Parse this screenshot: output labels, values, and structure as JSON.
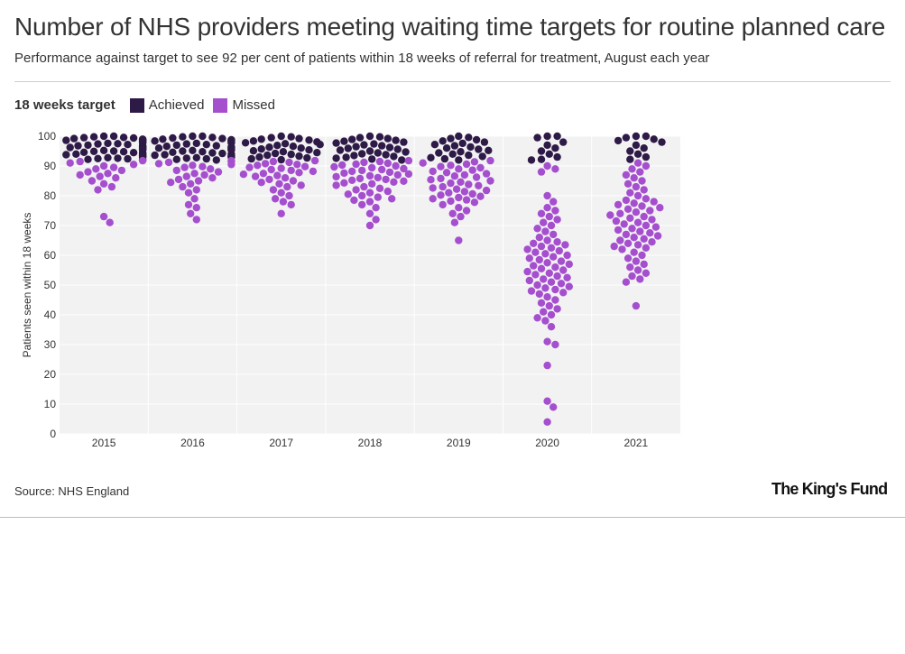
{
  "header": {
    "title": "Number of NHS providers meeting waiting time targets for routine planned care",
    "subtitle": "Performance against target to see 92 per cent of patients within 18 weeks of referral for treatment, August each year"
  },
  "legend": {
    "title": "18 weeks target",
    "items": [
      {
        "label": "Achieved",
        "color": "#2e1a47"
      },
      {
        "label": "Missed",
        "color": "#a54fcf"
      }
    ]
  },
  "footer": {
    "source": "Source: NHS England",
    "logo": "The King's Fund"
  },
  "chart_data": {
    "type": "scatter",
    "subtype": "beeswarm",
    "title": "Number of NHS providers meeting waiting time targets for routine planned care",
    "ylabel": "Patients seen within 18 weeks",
    "xlabel": "",
    "categories": [
      "2015",
      "2016",
      "2017",
      "2018",
      "2019",
      "2020",
      "2021"
    ],
    "ylim": [
      0,
      100
    ],
    "yticks": [
      0,
      10,
      20,
      30,
      40,
      50,
      60,
      70,
      80,
      90,
      100
    ],
    "target": 92,
    "series": [
      {
        "name": "Achieved",
        "color": "#2e1a47",
        "values": {
          "2015": [
            100,
            100,
            99.8,
            99.6,
            99.5,
            99.4,
            99.2,
            99,
            98.9,
            98.8,
            98.6,
            98.5,
            98.4,
            98.2,
            98,
            97.9,
            97.8,
            97.6,
            97.5,
            97.4,
            97.2,
            97,
            96.9,
            96.8,
            96.6,
            96.5,
            96.4,
            96.2,
            96,
            95.9,
            95.8,
            95.6,
            95.5,
            95.4,
            95.2,
            95,
            94.9,
            94.8,
            94.6,
            94.5,
            94.4,
            94.2,
            94,
            93.9,
            93.8,
            93.6,
            93.5,
            93.4,
            93.2,
            93,
            92.9,
            92.8,
            92.6,
            92.5,
            92.4,
            92.2,
            92.1,
            92
          ],
          "2016": [
            100,
            100,
            99.8,
            99.6,
            99.4,
            99.2,
            99,
            98.8,
            98.6,
            98.4,
            98.2,
            98,
            97.8,
            97.6,
            97.4,
            97.2,
            97,
            96.8,
            96.6,
            96.4,
            96.2,
            96,
            95.8,
            95.6,
            95.4,
            95.2,
            95,
            94.8,
            94.6,
            94.4,
            94.2,
            94,
            93.8,
            93.6,
            93.4,
            93.2,
            93,
            92.8,
            92.6,
            92.4,
            92.2,
            92
          ],
          "2017": [
            100,
            99.8,
            99.5,
            99.2,
            99,
            98.7,
            98.4,
            98.1,
            97.8,
            97.5,
            97.2,
            96.9,
            96.6,
            96.3,
            96,
            95.7,
            95.4,
            95.1,
            94.8,
            94.5,
            94.2,
            93.9,
            93.6,
            93.3,
            93,
            92.7,
            92.4,
            92.1
          ],
          "2018": [
            100,
            99.8,
            99.5,
            99.2,
            98.9,
            98.6,
            98.3,
            98,
            97.7,
            97.4,
            97.1,
            96.8,
            96.5,
            96.2,
            95.9,
            95.6,
            95.3,
            95,
            94.7,
            94.4,
            94.1,
            93.8,
            93.5,
            93.2,
            92.9,
            92.6,
            92.3,
            92
          ],
          "2019": [
            100,
            99.6,
            99.2,
            98.8,
            98.4,
            98,
            97.6,
            97.2,
            96.8,
            96.4,
            96,
            95.6,
            95.2,
            94.8,
            94.4,
            94,
            93.6,
            93.2,
            92.8,
            92.4,
            92
          ],
          "2020": [
            100,
            100,
            99.5,
            98,
            97,
            96,
            95,
            94,
            93,
            92.2,
            92
          ],
          "2021": [
            100,
            100,
            99.5,
            99,
            98.5,
            98,
            97,
            96,
            95,
            94,
            93,
            92.2
          ]
        }
      },
      {
        "name": "Missed",
        "color": "#a54fcf",
        "values": {
          "2015": [
            91.8,
            91.5,
            91,
            90.5,
            90,
            89.5,
            89,
            88.5,
            88,
            87.5,
            87,
            86.5,
            86,
            85,
            84,
            83,
            82,
            73,
            71
          ],
          "2016": [
            91.8,
            91.5,
            91.2,
            90.8,
            90.5,
            90.2,
            89.8,
            89.5,
            89,
            88.5,
            88,
            87.5,
            87,
            86.5,
            86,
            85.5,
            85,
            84.5,
            84,
            83,
            82,
            81,
            79,
            77,
            76,
            74,
            72
          ],
          "2017": [
            91.8,
            91.5,
            91.2,
            90.8,
            90.5,
            90.2,
            89.8,
            89.5,
            89.2,
            88.8,
            88.5,
            88.2,
            87.8,
            87.5,
            87.2,
            86.8,
            86.5,
            86,
            85.5,
            85,
            84.5,
            84,
            83.5,
            83,
            82,
            81,
            80,
            79,
            78,
            77,
            74
          ],
          "2018": [
            91.8,
            91.5,
            91.2,
            90.9,
            90.6,
            90.3,
            90,
            89.7,
            89.4,
            89.1,
            88.8,
            88.5,
            88.2,
            87.9,
            87.6,
            87.3,
            87,
            86.7,
            86.4,
            86.1,
            85.8,
            85.5,
            85.2,
            84.9,
            84.6,
            84.3,
            84,
            83.5,
            83,
            82.5,
            82,
            81.5,
            81,
            80.5,
            80,
            79.5,
            79,
            78.5,
            78,
            77,
            76,
            74,
            72,
            70
          ],
          "2019": [
            91.8,
            91.4,
            91,
            90.6,
            90.2,
            89.8,
            89.4,
            89,
            88.6,
            88.2,
            87.8,
            87.4,
            87,
            86.6,
            86.2,
            85.8,
            85.4,
            85,
            84.6,
            84.2,
            83.8,
            83.4,
            83,
            82.6,
            82.2,
            81.8,
            81.4,
            81,
            80.6,
            80.2,
            79.8,
            79.4,
            79,
            78.6,
            78.2,
            77.8,
            77,
            76,
            75,
            74,
            73,
            71,
            65
          ],
          "2020": [
            90,
            89,
            88,
            80,
            78,
            76,
            75,
            74,
            73,
            72,
            71,
            70,
            69,
            68,
            67,
            66,
            65,
            64.5,
            64,
            63.5,
            63,
            62.5,
            62,
            61.5,
            61,
            60.5,
            60,
            59.5,
            59,
            58.5,
            58,
            57.5,
            57,
            56.5,
            56,
            55.5,
            55,
            54.5,
            54,
            53.5,
            53,
            52.5,
            52,
            51.5,
            51,
            50.5,
            50,
            49.5,
            49,
            48.5,
            48,
            47.5,
            47,
            46,
            45,
            44,
            43,
            42,
            41,
            40,
            39,
            38,
            36,
            31,
            30,
            23,
            11,
            9,
            4
          ],
          "2021": [
            91,
            90,
            89,
            88,
            87,
            86,
            85,
            84,
            83,
            82,
            81,
            80,
            79,
            78.5,
            78,
            77.5,
            77,
            76.5,
            76,
            75.5,
            75,
            74.5,
            74,
            73.5,
            73,
            72.5,
            72,
            71.5,
            71,
            70.5,
            70,
            69.5,
            69,
            68.5,
            68,
            67.5,
            67,
            66.5,
            66,
            65.5,
            65,
            64.5,
            64,
            63.5,
            63,
            62.5,
            62,
            61,
            60,
            59,
            58,
            57,
            56,
            55,
            54,
            53,
            52,
            51,
            43
          ]
        }
      }
    ]
  }
}
